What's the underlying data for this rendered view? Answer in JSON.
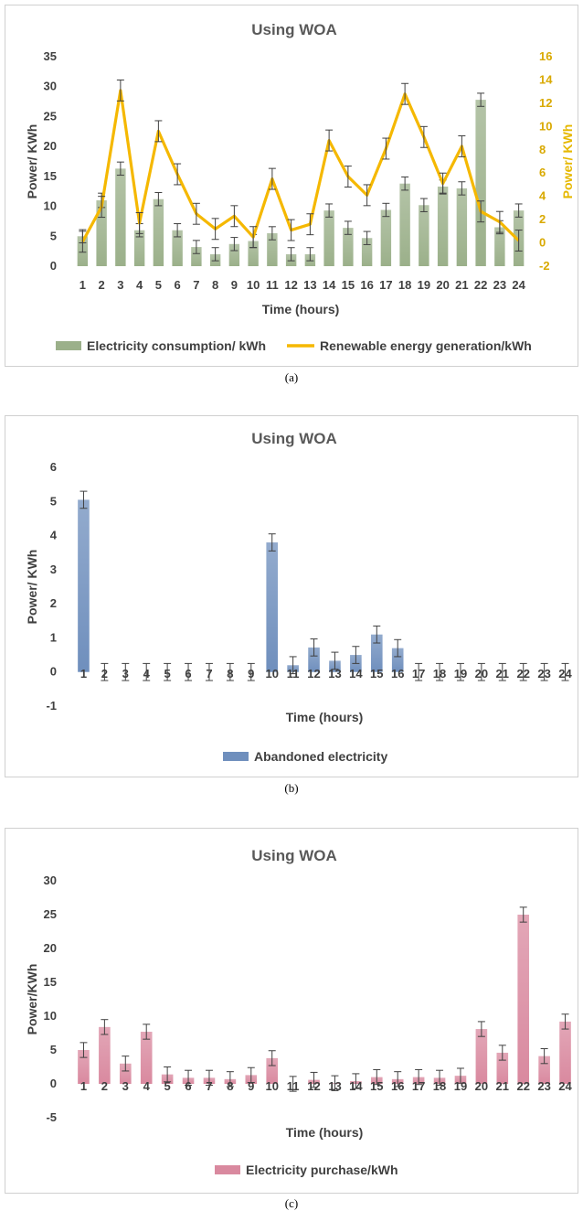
{
  "chart_data": [
    {
      "type": "bar",
      "title": "Using WOA",
      "xlabel": "Time (hours)",
      "ylabel": "Power/ KWh",
      "ylabel_right": "Power/ KWh",
      "categories": [
        "1",
        "2",
        "3",
        "4",
        "5",
        "6",
        "7",
        "8",
        "9",
        "10",
        "11",
        "12",
        "13",
        "14",
        "15",
        "16",
        "17",
        "18",
        "19",
        "20",
        "21",
        "22",
        "23",
        "24"
      ],
      "ylim": [
        0,
        35
      ],
      "yticks": [
        "0",
        "5",
        "10",
        "15",
        "20",
        "25",
        "30",
        "35"
      ],
      "ylim_right": [
        -2,
        16
      ],
      "yticks_right": [
        "-2",
        "0",
        "2",
        "4",
        "6",
        "8",
        "10",
        "12",
        "14",
        "16"
      ],
      "legend_position": "bottom",
      "colors": {
        "bar": "#9bb08a",
        "line": "#f5b800",
        "error": "#404040"
      },
      "series": [
        {
          "name": "Electricity consumption/ kWh",
          "type": "bar",
          "axis": "left",
          "values": [
            5,
            11,
            16.3,
            6,
            11.2,
            6,
            3.2,
            2,
            3.7,
            4.2,
            5.5,
            2,
            2,
            9.3,
            6.4,
            4.7,
            9.4,
            13.8,
            10.2,
            13.3,
            13,
            27.8,
            6.5,
            9.3
          ],
          "errors": [
            1.1,
            1.2,
            1.1,
            1.1,
            1.1,
            1.1,
            1.1,
            1.1,
            1.1,
            1.1,
            1.1,
            1.1,
            1.1,
            1.1,
            1.1,
            1.1,
            1.1,
            1.1,
            1.1,
            1.1,
            1.1,
            1.1,
            1.1,
            1.1
          ]
        },
        {
          "name": "Renewable energy generation/kWh",
          "type": "line",
          "axis": "right",
          "values": [
            0.1,
            3.1,
            13.1,
            1.7,
            9.6,
            5.9,
            2.5,
            1.2,
            2.3,
            0.5,
            5.5,
            1.1,
            1.6,
            8.8,
            5.7,
            4.1,
            8.1,
            12.8,
            9.1,
            5.1,
            8.3,
            2.7,
            1.8,
            0.2
          ],
          "errors": [
            0.9,
            0.9,
            0.9,
            0.9,
            0.9,
            0.9,
            0.9,
            0.9,
            0.9,
            0.9,
            0.9,
            0.9,
            0.9,
            0.9,
            0.9,
            0.9,
            0.9,
            0.9,
            0.9,
            0.9,
            0.9,
            0.9,
            0.9,
            0.9
          ]
        }
      ]
    },
    {
      "type": "bar",
      "title": "Using WOA",
      "xlabel": "Time (hours)",
      "ylabel": "Power/ KWh",
      "categories": [
        "1",
        "2",
        "3",
        "4",
        "5",
        "6",
        "7",
        "8",
        "9",
        "10",
        "11",
        "12",
        "13",
        "14",
        "15",
        "16",
        "17",
        "18",
        "19",
        "20",
        "21",
        "22",
        "23",
        "24"
      ],
      "ylim": [
        -1,
        6
      ],
      "yticks": [
        "-1",
        "0",
        "1",
        "2",
        "3",
        "4",
        "5",
        "6"
      ],
      "legend_position": "bottom",
      "colors": {
        "bar": "#6f8fbd",
        "error": "#404040"
      },
      "series": [
        {
          "name": "Abandoned electricity",
          "type": "bar",
          "values": [
            5.05,
            0,
            0,
            0,
            0,
            0,
            0,
            0,
            0,
            3.8,
            0.2,
            0.72,
            0.33,
            0.5,
            1.1,
            0.7,
            0,
            0,
            0,
            0,
            0,
            0,
            0,
            0
          ],
          "errors": [
            0.25,
            0.25,
            0.25,
            0.25,
            0.25,
            0.25,
            0.25,
            0.25,
            0.25,
            0.25,
            0.25,
            0.25,
            0.25,
            0.25,
            0.25,
            0.25,
            0.25,
            0.25,
            0.25,
            0.25,
            0.25,
            0.25,
            0.25,
            0.25
          ]
        }
      ]
    },
    {
      "type": "bar",
      "title": "Using WOA",
      "xlabel": "Time (hours)",
      "ylabel": "Power/KWh",
      "categories": [
        "1",
        "2",
        "3",
        "4",
        "5",
        "6",
        "7",
        "8",
        "9",
        "10",
        "11",
        "12",
        "13",
        "14",
        "15",
        "16",
        "17",
        "18",
        "19",
        "20",
        "21",
        "22",
        "23",
        "24"
      ],
      "ylim": [
        -5,
        30
      ],
      "yticks": [
        "-5",
        "0",
        "5",
        "10",
        "15",
        "20",
        "25",
        "30"
      ],
      "legend_position": "bottom",
      "colors": {
        "bar": "#d9899f",
        "error": "#404040"
      },
      "series": [
        {
          "name": "Electricity purchase/kWh",
          "type": "bar",
          "values": [
            5,
            8.4,
            3,
            7.7,
            1.4,
            0.9,
            0.9,
            0.7,
            1.3,
            3.8,
            0,
            0.6,
            0.1,
            0.4,
            1,
            0.7,
            1,
            0.9,
            1.2,
            8.1,
            4.6,
            25,
            4.1,
            9.2
          ],
          "errors": [
            1.1,
            1.1,
            1.1,
            1.1,
            1.1,
            1.1,
            1.1,
            1.1,
            1.1,
            1.1,
            1.1,
            1.1,
            1.1,
            1.1,
            1.1,
            1.1,
            1.1,
            1.1,
            1.1,
            1.1,
            1.1,
            1.1,
            1.1,
            1.1
          ]
        }
      ]
    }
  ],
  "captions": [
    "(a)",
    "(b)",
    "(c)"
  ]
}
